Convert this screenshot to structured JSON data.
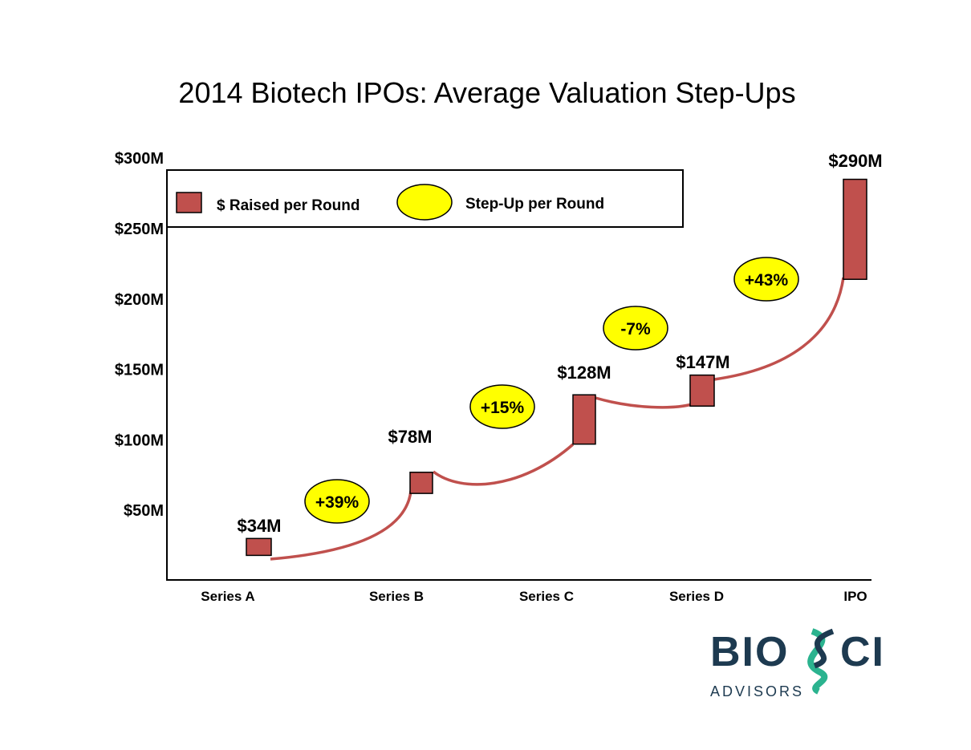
{
  "chart_data": {
    "type": "bar",
    "title": "2014 Biotech IPOs:  Average Valuation Step-Ups",
    "xlabel": "",
    "ylabel": "",
    "ylim": [
      0,
      300
    ],
    "y_ticks": [
      "$50M",
      "$100M",
      "$150M",
      "$200M",
      "$250M",
      "$300M"
    ],
    "y_tick_values": [
      50,
      100,
      150,
      200,
      250,
      300
    ],
    "categories": [
      "Series A",
      "Series B",
      "Series C",
      "Series D",
      "IPO"
    ],
    "valuation_labels": [
      "$34M",
      "$78M",
      "$128M",
      "$147M",
      "$290M"
    ],
    "raised_ranges": [
      [
        18,
        30
      ],
      [
        62,
        77
      ],
      [
        97,
        132
      ],
      [
        124,
        146
      ],
      [
        214,
        285
      ]
    ],
    "step_ups": [
      "+39%",
      "+15%",
      "-7%",
      "+43%"
    ],
    "legend": {
      "placement": "top",
      "items": [
        "$ Raised per Round",
        "Step-Up per Round"
      ]
    },
    "grid": false,
    "colors": {
      "bar": "#c0504d",
      "curve": "#c0504d",
      "ellipse": "#ffff00"
    }
  },
  "logo": {
    "name": "BIOSCI",
    "sub": "ADVISORS",
    "colors": {
      "text": "#1d3a50",
      "helix": "#2bb38f"
    }
  }
}
